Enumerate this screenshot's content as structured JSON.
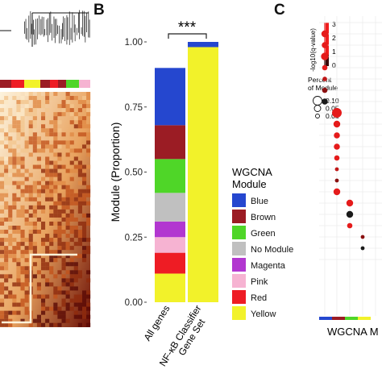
{
  "panels": {
    "a_letter": "",
    "b_letter": "B",
    "c_letter": "C"
  },
  "colors": {
    "Blue": "#2547cf",
    "Brown": "#9b1c24",
    "Green": "#4fd628",
    "No Module": "#c0c0c0",
    "Magenta": "#b237d0",
    "Pink": "#f6b3d2",
    "Red": "#ee1c24",
    "Yellow": "#f2f22a",
    "heatmap_dark": "#5a0a05",
    "heatmap_mid": "#c2531b",
    "heatmap_light": "#fdf1d8"
  },
  "chart_data": [
    {
      "type": "heatmap",
      "panel": "A",
      "note_visible": "dendrogram over TOM heatmap with module color bar",
      "module_bar_colors": [
        "#9b1c24",
        "#ee1c24",
        "#f2f22a",
        "#9b1c24",
        "#ee1c24",
        "#9b1c24",
        "#4fd628",
        "#f6b3d2"
      ]
    },
    {
      "type": "bar",
      "panel": "B",
      "stacked": true,
      "categories": [
        "All genes",
        "NF-κB Classifier Gene Set"
      ],
      "ylabel": "Module (Proportion)",
      "ylim": [
        0,
        1
      ],
      "yticks": [
        "0.00",
        "0.25",
        "0.50",
        "0.75",
        "1.00"
      ],
      "significance": "***",
      "legend_title_lines": [
        "WGCNA",
        "Module"
      ],
      "legend_position": "right",
      "series": [
        {
          "name": "Yellow",
          "values": [
            0.11,
            0.98
          ]
        },
        {
          "name": "Red",
          "values": [
            0.08,
            0.0
          ]
        },
        {
          "name": "Pink",
          "values": [
            0.06,
            0.0
          ]
        },
        {
          "name": "Magenta",
          "values": [
            0.06,
            0.0
          ]
        },
        {
          "name": "No Module",
          "values": [
            0.11,
            0.0
          ]
        },
        {
          "name": "Green",
          "values": [
            0.13,
            0.0
          ]
        },
        {
          "name": "Brown",
          "values": [
            0.13,
            0.0
          ]
        },
        {
          "name": "Blue",
          "values": [
            0.22,
            0.02
          ]
        }
      ]
    },
    {
      "type": "scatter",
      "panel": "C",
      "xlabel": "WGCNA M",
      "legend_q_label": "-log10(q-value)",
      "legend_q_ticks": [
        "3",
        "2",
        "1",
        "0"
      ],
      "legend_pct_title_lines": [
        "Percent",
        "of Module"
      ],
      "legend_pct_values": [
        "0.10",
        "0.05",
        "0.01"
      ],
      "points": [
        {
          "x": 1,
          "y": 1,
          "q": 3.0,
          "pct": 0.06
        },
        {
          "x": 1,
          "y": 2,
          "q": 2.6,
          "pct": 0.05
        },
        {
          "x": 1,
          "y": 3,
          "q": 2.8,
          "pct": 0.07
        },
        {
          "x": 1,
          "y": 4,
          "q": 2.4,
          "pct": 0.04
        },
        {
          "x": 1,
          "y": 5,
          "q": 1.8,
          "pct": 0.03
        },
        {
          "x": 1,
          "y": 6,
          "q": 1.2,
          "pct": 0.04
        },
        {
          "x": 1,
          "y": 7,
          "q": 0.2,
          "pct": 0.05
        },
        {
          "x": 2,
          "y": 8,
          "q": 2.9,
          "pct": 0.1
        },
        {
          "x": 2,
          "y": 9,
          "q": 2.5,
          "pct": 0.06
        },
        {
          "x": 2,
          "y": 10,
          "q": 2.7,
          "pct": 0.05
        },
        {
          "x": 2,
          "y": 11,
          "q": 2.4,
          "pct": 0.05
        },
        {
          "x": 2,
          "y": 12,
          "q": 2.2,
          "pct": 0.04
        },
        {
          "x": 2,
          "y": 13,
          "q": 1.6,
          "pct": 0.02
        },
        {
          "x": 2,
          "y": 14,
          "q": 0.9,
          "pct": 0.02
        },
        {
          "x": 2,
          "y": 15,
          "q": 2.6,
          "pct": 0.06
        },
        {
          "x": 3,
          "y": 16,
          "q": 2.8,
          "pct": 0.06
        },
        {
          "x": 3,
          "y": 17,
          "q": 0.1,
          "pct": 0.06
        },
        {
          "x": 3,
          "y": 18,
          "q": 2.3,
          "pct": 0.04
        },
        {
          "x": 4,
          "y": 19,
          "q": 1.0,
          "pct": 0.02
        },
        {
          "x": 4,
          "y": 20,
          "q": 0.2,
          "pct": 0.02
        }
      ],
      "bottom_bar_colors": [
        "#2547cf",
        "#9b1c24",
        "#4fd628",
        "#f2f22a"
      ]
    }
  ]
}
